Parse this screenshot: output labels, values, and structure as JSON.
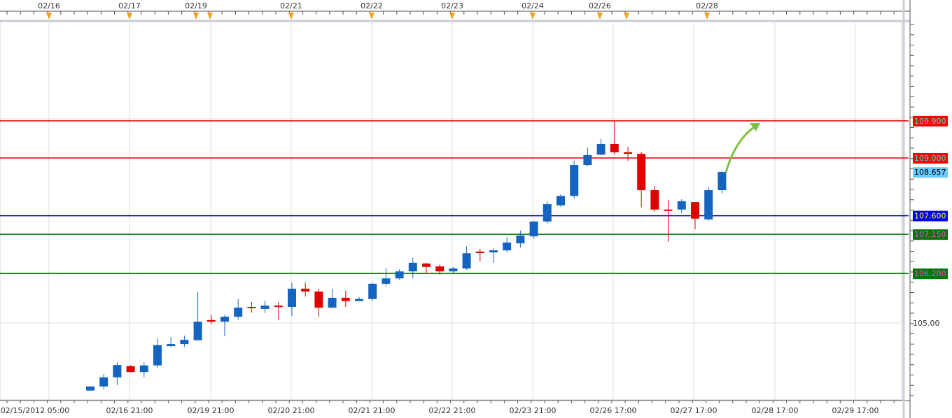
{
  "chart_data": {
    "type": "candlestick",
    "title": "",
    "top_date_labels": [
      "02/16",
      "02/17",
      "02/19",
      "02/21",
      "02/22",
      "02/23",
      "02/24",
      "02/26",
      "02/28"
    ],
    "bottom_time_labels": [
      "02/15/2012 05:00",
      "02/16 21:00",
      "02/19 21:00",
      "02/20 21:00",
      "02/21 21:00",
      "02/22 21:00",
      "02/23 21:00",
      "02/26 17:00",
      "02/27 17:00",
      "02/28 17:00",
      "02/29 17:00"
    ],
    "y_tick_labels": [
      "105.00"
    ],
    "ylim": [
      103.2,
      112.3
    ],
    "colors": {
      "up": "#1565c0",
      "down": "#e00000",
      "grid": "#dddddd",
      "event_marker": "#f4a11d",
      "arrow": "#7dc242"
    },
    "candles_ohlc": [
      [
        103.36,
        103.46,
        103.36,
        103.46
      ],
      [
        103.46,
        103.76,
        103.39,
        103.68
      ],
      [
        103.68,
        104.05,
        103.49,
        103.98
      ],
      [
        103.95,
        103.98,
        103.8,
        103.81
      ],
      [
        103.81,
        104.05,
        103.68,
        103.97
      ],
      [
        103.97,
        104.63,
        103.9,
        104.46
      ],
      [
        104.44,
        104.66,
        104.42,
        104.49
      ],
      [
        104.49,
        104.69,
        104.42,
        104.59
      ],
      [
        104.58,
        105.75,
        104.58,
        105.03
      ],
      [
        105.07,
        105.19,
        104.97,
        105.03
      ],
      [
        105.03,
        105.2,
        104.68,
        105.15
      ],
      [
        105.15,
        105.58,
        105.08,
        105.37
      ],
      [
        105.39,
        105.51,
        105.25,
        105.36
      ],
      [
        105.34,
        105.54,
        105.24,
        105.42
      ],
      [
        105.42,
        105.51,
        105.07,
        105.41
      ],
      [
        105.39,
        105.97,
        105.17,
        105.83
      ],
      [
        105.83,
        105.98,
        105.64,
        105.76
      ],
      [
        105.76,
        105.83,
        105.14,
        105.37
      ],
      [
        105.37,
        105.83,
        105.36,
        105.61
      ],
      [
        105.61,
        105.78,
        105.39,
        105.53
      ],
      [
        105.53,
        105.63,
        105.53,
        105.58
      ],
      [
        105.58,
        105.97,
        105.54,
        105.95
      ],
      [
        105.95,
        106.32,
        105.88,
        106.08
      ],
      [
        106.08,
        106.3,
        106.05,
        106.25
      ],
      [
        106.25,
        106.58,
        106.08,
        106.46
      ],
      [
        106.44,
        106.46,
        106.22,
        106.36
      ],
      [
        106.37,
        106.42,
        106.17,
        106.25
      ],
      [
        106.25,
        106.36,
        106.19,
        106.32
      ],
      [
        106.32,
        106.86,
        106.29,
        106.69
      ],
      [
        106.73,
        106.8,
        106.49,
        106.71
      ],
      [
        106.71,
        106.81,
        106.46,
        106.76
      ],
      [
        106.76,
        107.08,
        106.71,
        106.95
      ],
      [
        106.93,
        107.24,
        106.83,
        107.12
      ],
      [
        107.1,
        107.47,
        107.05,
        107.46
      ],
      [
        107.46,
        107.95,
        107.41,
        107.88
      ],
      [
        107.85,
        108.12,
        107.81,
        108.08
      ],
      [
        108.08,
        108.93,
        108.02,
        108.83
      ],
      [
        108.83,
        109.25,
        108.8,
        109.07
      ],
      [
        109.08,
        109.47,
        109.07,
        109.34
      ],
      [
        109.34,
        109.9,
        109.08,
        109.14
      ],
      [
        109.14,
        109.27,
        108.93,
        109.1
      ],
      [
        109.1,
        109.15,
        107.8,
        108.22
      ],
      [
        108.22,
        108.32,
        107.7,
        107.75
      ],
      [
        107.75,
        107.98,
        106.97,
        107.73
      ],
      [
        107.75,
        108.0,
        107.66,
        107.95
      ],
      [
        107.93,
        107.93,
        107.27,
        107.53
      ],
      [
        107.51,
        108.29,
        107.48,
        108.22
      ],
      [
        108.22,
        108.69,
        108.14,
        108.66
      ]
    ],
    "horizontal_levels": [
      {
        "value": 109.9,
        "label": "109.900",
        "line": "#e00000",
        "bg": "#ff0000",
        "fg": "#40e0d0"
      },
      {
        "value": 109.0,
        "label": "109.000",
        "line": "#e00000",
        "bg": "#ff0000",
        "fg": "#40e0d0"
      },
      {
        "value": 107.6,
        "label": "107.600",
        "line": "#0000d0",
        "bg": "#0000ff",
        "fg": "#ffff00"
      },
      {
        "value": 107.15,
        "label": "107.150",
        "line": "#007700",
        "bg": "#007700",
        "fg": "#ff40ff"
      },
      {
        "value": 106.2,
        "label": "106.200",
        "line": "#007700",
        "bg": "#007700",
        "fg": "#ff40ff"
      }
    ],
    "current_price": {
      "value": 108.657,
      "label": "108.657",
      "bg": "#66ccff",
      "fg": "#000000"
    }
  }
}
